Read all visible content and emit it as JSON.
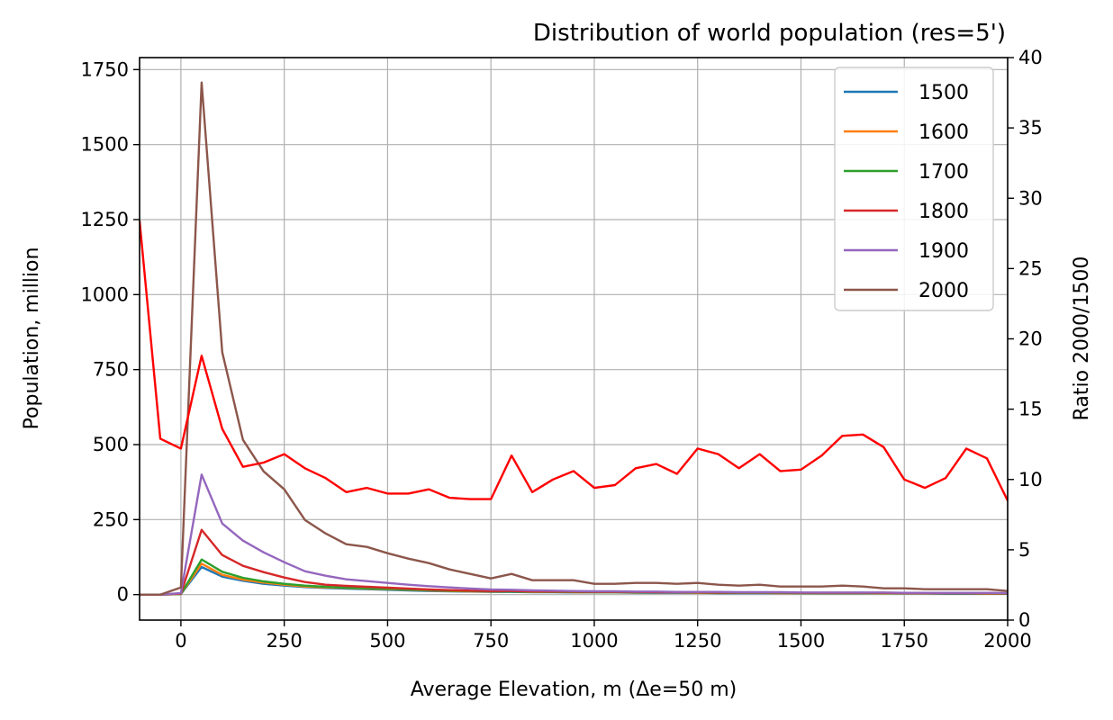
{
  "chart_data": {
    "type": "line",
    "title": "Distribution of world population (res=5')",
    "xlabel": "Average Elevation, m (Δe=50 m)",
    "ylabel": "Population, million",
    "ylabel_right": "Ratio 2000/1500",
    "xlim": [
      -100,
      2000
    ],
    "ylim": [
      -85,
      1790
    ],
    "ylim_right": [
      0,
      40
    ],
    "xticks": [
      0,
      250,
      500,
      750,
      1000,
      1250,
      1500,
      1750,
      2000
    ],
    "yticks": [
      0,
      250,
      500,
      750,
      1000,
      1250,
      1500,
      1750
    ],
    "yticks_right": [
      0,
      5,
      10,
      15,
      20,
      25,
      30,
      35,
      40
    ],
    "grid": true,
    "legend_position": "top-right",
    "x": [
      -100,
      -50,
      0,
      50,
      100,
      150,
      200,
      250,
      300,
      350,
      400,
      450,
      500,
      550,
      600,
      650,
      700,
      750,
      800,
      850,
      900,
      950,
      1000,
      1050,
      1100,
      1150,
      1200,
      1250,
      1300,
      1350,
      1400,
      1450,
      1500,
      1550,
      1600,
      1650,
      1700,
      1750,
      1800,
      1850,
      1900,
      1950,
      2000
    ],
    "series": [
      {
        "name": "1500",
        "color": "#1f77b4",
        "axis": "left",
        "values": [
          0,
          0,
          2,
          92,
          60,
          46,
          36,
          30,
          25,
          22,
          20,
          18,
          16,
          14,
          12,
          11,
          10,
          9,
          9,
          8,
          8,
          7,
          7,
          7,
          6,
          6,
          6,
          6,
          5,
          5,
          5,
          5,
          5,
          4,
          4,
          4,
          4,
          4,
          4,
          3,
          3,
          3,
          3
        ]
      },
      {
        "name": "1600",
        "color": "#ff7f0e",
        "axis": "left",
        "values": [
          0,
          0,
          2,
          103,
          66,
          50,
          40,
          33,
          27,
          24,
          22,
          20,
          18,
          16,
          14,
          12,
          11,
          10,
          10,
          9,
          9,
          8,
          8,
          8,
          7,
          7,
          7,
          6,
          6,
          6,
          6,
          5,
          5,
          5,
          5,
          5,
          4,
          4,
          4,
          4,
          4,
          3,
          3
        ]
      },
      {
        "name": "1700",
        "color": "#2ca02c",
        "axis": "left",
        "values": [
          0,
          0,
          2,
          117,
          76,
          56,
          44,
          36,
          30,
          26,
          23,
          21,
          19,
          17,
          15,
          13,
          12,
          11,
          10,
          10,
          9,
          9,
          8,
          8,
          8,
          7,
          7,
          7,
          6,
          6,
          6,
          6,
          5,
          5,
          5,
          5,
          5,
          4,
          4,
          4,
          4,
          4,
          3
        ]
      },
      {
        "name": "1800",
        "color": "#d62728",
        "axis": "left",
        "values": [
          0,
          0,
          3,
          216,
          132,
          96,
          75,
          57,
          42,
          33,
          29,
          26,
          23,
          20,
          17,
          15,
          13,
          12,
          12,
          11,
          10,
          10,
          9,
          9,
          9,
          8,
          8,
          8,
          7,
          7,
          7,
          7,
          6,
          6,
          6,
          6,
          6,
          5,
          5,
          5,
          5,
          5,
          4
        ]
      },
      {
        "name": "1900",
        "color": "#9467bd",
        "axis": "left",
        "values": [
          0,
          0,
          5,
          400,
          237,
          180,
          141,
          108,
          78,
          63,
          51,
          45,
          39,
          33,
          28,
          24,
          20,
          17,
          16,
          14,
          13,
          12,
          11,
          11,
          10,
          10,
          9,
          9,
          9,
          8,
          8,
          8,
          7,
          7,
          7,
          7,
          7,
          6,
          6,
          6,
          6,
          6,
          5
        ]
      },
      {
        "name": "2000",
        "color": "#8c564b",
        "axis": "left",
        "values": [
          0,
          0,
          24,
          1707,
          808,
          516,
          411,
          351,
          249,
          204,
          168,
          159,
          138,
          120,
          105,
          84,
          69,
          54,
          69,
          48,
          48,
          48,
          36,
          36,
          39,
          39,
          36,
          39,
          33,
          30,
          33,
          27,
          27,
          27,
          30,
          27,
          21,
          21,
          18,
          18,
          18,
          18,
          12
        ]
      },
      {
        "color": "#ff0000",
        "axis": "right",
        "values": [
          28.4,
          12.9,
          12.2,
          18.8,
          13.6,
          10.9,
          11.2,
          11.8,
          10.8,
          10.1,
          9.1,
          9.4,
          9.0,
          9.0,
          9.3,
          8.7,
          8.6,
          8.6,
          11.7,
          9.1,
          10.0,
          10.6,
          9.4,
          9.6,
          10.8,
          11.1,
          10.4,
          12.2,
          11.8,
          10.8,
          11.8,
          10.6,
          10.7,
          11.7,
          13.1,
          13.2,
          12.3,
          10.0,
          9.4,
          10.1,
          12.2,
          11.5,
          8.5
        ]
      }
    ]
  }
}
